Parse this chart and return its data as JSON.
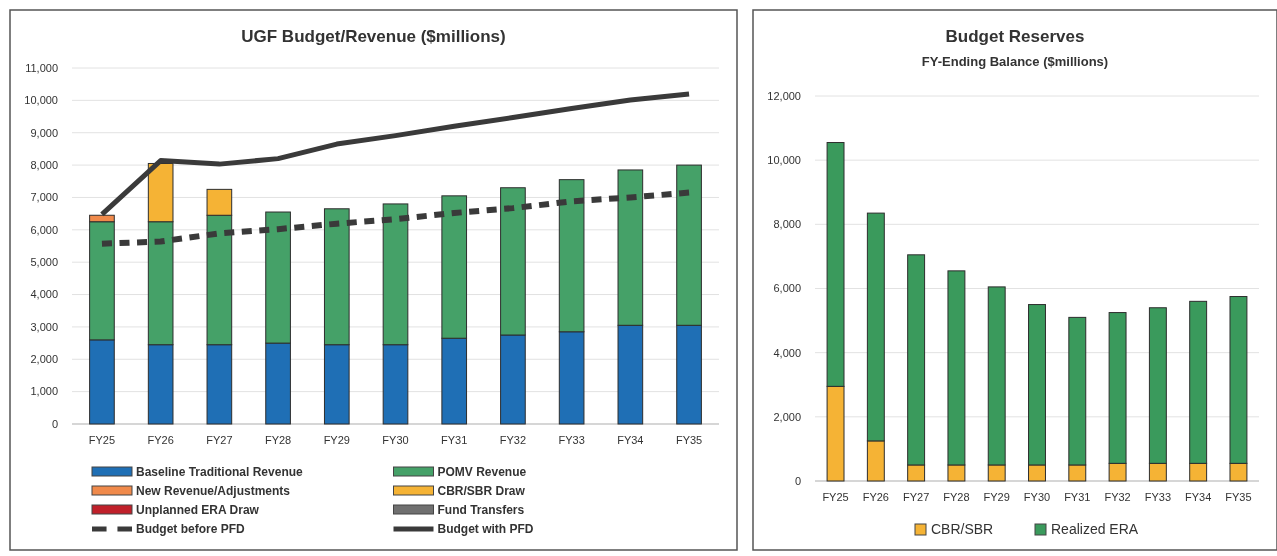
{
  "chart_data": [
    {
      "type": "bar",
      "stacked": true,
      "title": "UGF Budget/Revenue ($millions)",
      "categories": [
        "FY25",
        "FY26",
        "FY27",
        "FY28",
        "FY29",
        "FY30",
        "FY31",
        "FY32",
        "FY33",
        "FY34",
        "FY35"
      ],
      "ylim": [
        0,
        11000
      ],
      "yticks": [
        {
          "value": 0,
          "label": "0"
        },
        {
          "value": 1000,
          "label": "1,000"
        },
        {
          "value": 2000,
          "label": "2,000"
        },
        {
          "value": 3000,
          "label": "3,000"
        },
        {
          "value": 4000,
          "label": "4,000"
        },
        {
          "value": 5000,
          "label": "5,000"
        },
        {
          "value": 6000,
          "label": "6,000"
        },
        {
          "value": 7000,
          "label": "7,000"
        },
        {
          "value": 8000,
          "label": "8,000"
        },
        {
          "value": 9000,
          "label": "9,000"
        },
        {
          "value": 10000,
          "label": "10,000"
        },
        {
          "value": 11000,
          "label": "11,000"
        }
      ],
      "grid": "y",
      "legend": "bottom",
      "series": [
        {
          "name": "Baseline Traditional Revenue",
          "color": "#1f6fb5",
          "values": [
            2600,
            2450,
            2450,
            2500,
            2450,
            2450,
            2650,
            2750,
            2850,
            3050,
            3050
          ]
        },
        {
          "name": "POMV Revenue",
          "color": "#45a168",
          "values": [
            3650,
            3800,
            4000,
            4050,
            4200,
            4350,
            4400,
            4550,
            4700,
            4800,
            4950
          ]
        },
        {
          "name": "New Revenue/Adjustments",
          "color": "#f08a4b",
          "values": [
            200,
            null,
            null,
            null,
            null,
            null,
            null,
            null,
            null,
            null,
            null
          ]
        },
        {
          "name": "CBR/SBR Draw",
          "color": "#f5b335",
          "values": [
            null,
            1800,
            800,
            null,
            null,
            null,
            null,
            null,
            null,
            null,
            null
          ]
        },
        {
          "name": "Unplanned ERA Draw",
          "color": "#c0202a",
          "values": [
            null,
            null,
            null,
            null,
            null,
            null,
            null,
            null,
            null,
            null,
            null
          ]
        },
        {
          "name": "Fund Transfers",
          "color": "#707070",
          "values": [
            null,
            null,
            null,
            null,
            null,
            null,
            null,
            null,
            null,
            null,
            null
          ]
        },
        {
          "name": "Budget before PFD",
          "type": "line",
          "line_style": "dashed",
          "color": "#3a3a3a",
          "values": [
            5570,
            5640,
            5890,
            6020,
            6190,
            6330,
            6520,
            6670,
            6880,
            7000,
            7150
          ]
        },
        {
          "name": "Budget with PFD",
          "type": "line",
          "line_style": "solid",
          "color": "#3a3a3a",
          "values": [
            6480,
            8140,
            8030,
            8200,
            8650,
            8910,
            9200,
            9470,
            9750,
            10010,
            10200
          ]
        }
      ]
    },
    {
      "type": "bar",
      "stacked": true,
      "title": "Budget Reserves",
      "subtitle": "FY-Ending Balance ($millions)",
      "categories": [
        "FY25",
        "FY26",
        "FY27",
        "FY28",
        "FY29",
        "FY30",
        "FY31",
        "FY32",
        "FY33",
        "FY34",
        "FY35"
      ],
      "ylim": [
        0,
        12000
      ],
      "yticks": [
        {
          "value": 0,
          "label": "0"
        },
        {
          "value": 2000,
          "label": "2,000"
        },
        {
          "value": 4000,
          "label": "4,000"
        },
        {
          "value": 6000,
          "label": "6,000"
        },
        {
          "value": 8000,
          "label": "8,000"
        },
        {
          "value": 10000,
          "label": "10,000"
        },
        {
          "value": 12000,
          "label": "12,000"
        }
      ],
      "grid": "y",
      "legend": "bottom",
      "series": [
        {
          "name": "CBR/SBR",
          "color": "#f5b335",
          "values": [
            2950,
            1250,
            500,
            500,
            500,
            500,
            500,
            550,
            550,
            550,
            550
          ]
        },
        {
          "name": "Realized ERA",
          "color": "#3a9a5c",
          "values": [
            7600,
            7100,
            6550,
            6050,
            5550,
            5000,
            4600,
            4700,
            4850,
            5050,
            5200
          ]
        }
      ]
    }
  ]
}
